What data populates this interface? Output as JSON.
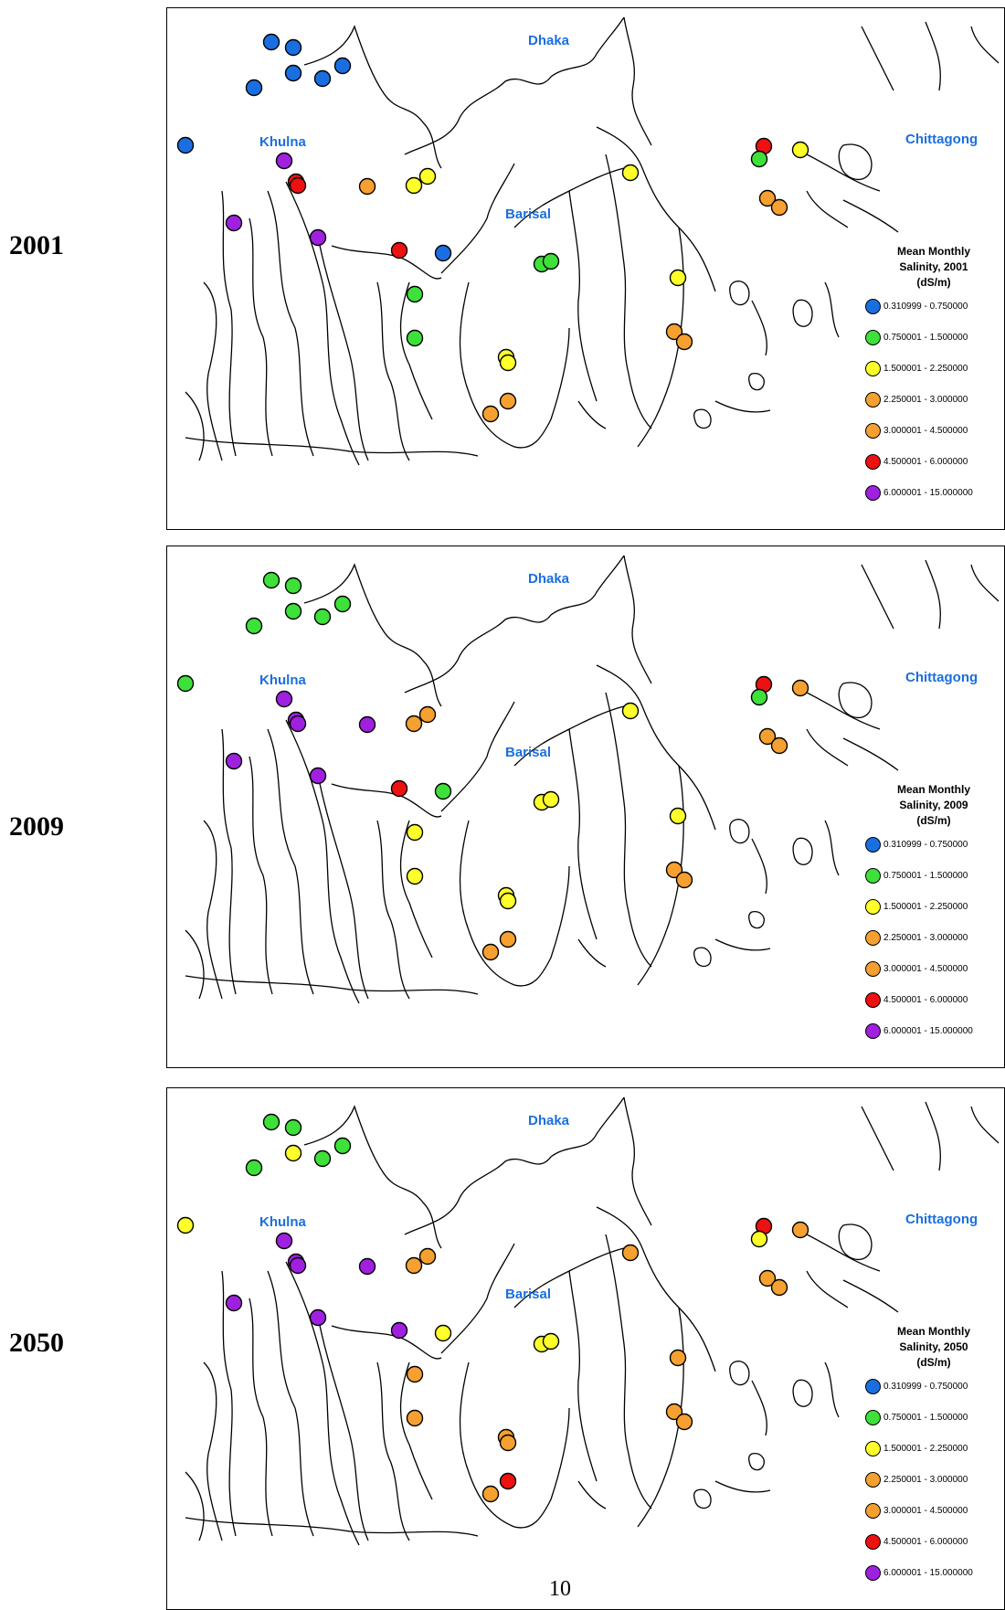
{
  "colors": {
    "blue": "#1a6fe0",
    "green": "#3ee03a",
    "yellow": "#ffff2a",
    "orange": "#f5a030",
    "red": "#ee1111",
    "purple": "#a020e0"
  },
  "cities": {
    "dhaka": "Dhaka",
    "khulna": "Khulna",
    "barisal": "Barisal",
    "chittagong": "Chittagong"
  },
  "legend": {
    "title_line1": "Mean Monthly",
    "unit": "(dS/m)",
    "classes": [
      {
        "label": "0.310999 - 0.750000",
        "color": "blue"
      },
      {
        "label": "0.750001 - 1.500000",
        "color": "green"
      },
      {
        "label": "1.500001 - 2.250000",
        "color": "yellow"
      },
      {
        "label": "2.250001 - 3.000000",
        "color": "orange"
      },
      {
        "label": "3.000001 - 4.500000",
        "color": "orange"
      },
      {
        "label": "4.500001 - 6.000000",
        "color": "red"
      },
      {
        "label": "6.000001 - 15.000000",
        "color": "purple"
      }
    ]
  },
  "panels": [
    {
      "year": "2001",
      "legend_title_line2": "Salinity, 2001",
      "stations": [
        "blue",
        "blue",
        "blue",
        "blue",
        "blue",
        "blue",
        "blue",
        "purple",
        "red",
        "red",
        "orange",
        "yellow",
        "yellow",
        "purple",
        "purple",
        "red",
        "blue",
        "green",
        "green",
        "green",
        "green",
        "yellow",
        "yellow",
        "orange",
        "orange",
        "yellow",
        "yellow",
        "orange",
        "orange",
        "red",
        "green",
        "yellow",
        "orange",
        "orange"
      ]
    },
    {
      "year": "2009",
      "legend_title_line2": "Salinity, 2009",
      "stations": [
        "green",
        "green",
        "green",
        "green",
        "green",
        "green",
        "green",
        "purple",
        "purple",
        "purple",
        "purple",
        "orange",
        "orange",
        "purple",
        "purple",
        "red",
        "green",
        "yellow",
        "yellow",
        "yellow",
        "yellow",
        "yellow",
        "yellow",
        "orange",
        "orange",
        "yellow",
        "yellow",
        "orange",
        "orange",
        "red",
        "green",
        "orange",
        "orange",
        "orange"
      ]
    },
    {
      "year": "2050",
      "legend_title_line2": "Salinity, 2050",
      "stations": [
        "green",
        "green",
        "green",
        "yellow",
        "green",
        "green",
        "yellow",
        "purple",
        "purple",
        "purple",
        "purple",
        "orange",
        "orange",
        "purple",
        "purple",
        "purple",
        "yellow",
        "orange",
        "orange",
        "yellow",
        "yellow",
        "orange",
        "orange",
        "orange",
        "red",
        "orange",
        "orange",
        "orange",
        "orange",
        "red",
        "yellow",
        "orange",
        "orange",
        "orange"
      ]
    }
  ],
  "page_number": "10"
}
